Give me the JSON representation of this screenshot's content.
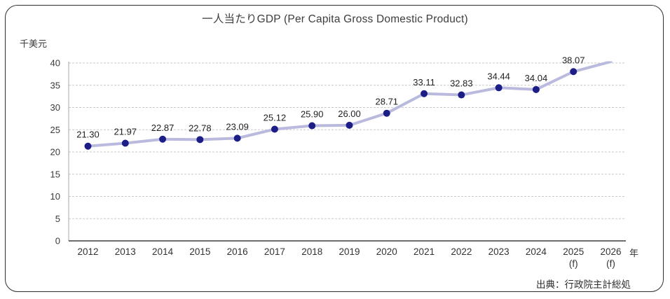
{
  "chart_data": {
    "type": "line",
    "title": "一人当たりGDP (Per Capita Gross Domestic Product)",
    "ylabel": "千美元",
    "xlabel": "年",
    "source": "出典：行政院主計総処",
    "categories": [
      "2012",
      "2013",
      "2014",
      "2015",
      "2016",
      "2017",
      "2018",
      "2019",
      "2020",
      "2021",
      "2022",
      "2023",
      "2024",
      "2025",
      "2026"
    ],
    "category_sublabels": [
      "",
      "",
      "",
      "",
      "",
      "",
      "",
      "",
      "",
      "",
      "",
      "",
      "",
      "(f)",
      "(f)"
    ],
    "series": [
      {
        "name": "一人当たりGDP",
        "values": [
          21.3,
          21.97,
          22.87,
          22.78,
          23.09,
          25.12,
          25.9,
          26.0,
          28.71,
          33.11,
          32.83,
          34.44,
          34.04,
          38.07,
          40.3
        ],
        "point_labels": [
          "21.30",
          "21.97",
          "22.87",
          "22.78",
          "23.09",
          "25.12",
          "25.90",
          "26.00",
          "28.71",
          "33.11",
          "32.83",
          "34.44",
          "34.04",
          "38.07",
          ""
        ],
        "last_point_clipped": true
      }
    ],
    "ylim": [
      0,
      40
    ],
    "ytick_step": 5,
    "yticks": [
      0,
      5,
      10,
      15,
      20,
      25,
      30,
      35,
      40
    ],
    "grid": "horizontal-dashed",
    "legend": "none",
    "colors": {
      "line": "#b9bade",
      "marker": "#1d1d87",
      "grid": "#c9c9c9",
      "axis": "#3c3c3c",
      "y_axis": "#a9a9a9",
      "tick_text": "#3a3a3a",
      "label_text": "#1f1f1f",
      "border": "#2e2e2e"
    }
  }
}
